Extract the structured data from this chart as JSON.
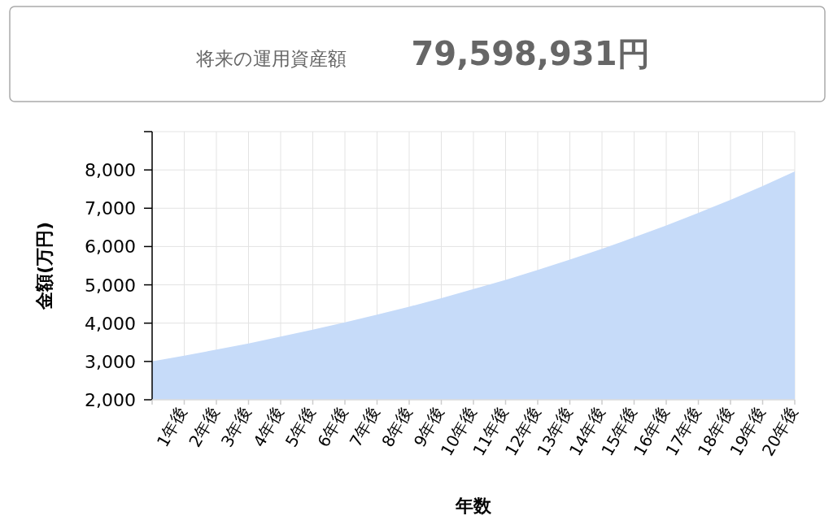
{
  "chart_data": {
    "type": "area",
    "title": "将来の運用資産額",
    "subtitle": "79,598,931円",
    "xlabel": "年数",
    "ylabel": "金額(万円)",
    "categories": [
      null,
      "1年後",
      "2年後",
      "3年後",
      "4年後",
      "5年後",
      "6年後",
      "7年後",
      "8年後",
      "9年後",
      "10年後",
      "11年後",
      "12年後",
      "13年後",
      "14年後",
      "15年後",
      "16年後",
      "17年後",
      "18年後",
      "19年後",
      "20年後"
    ],
    "series": [
      {
        "color": "#c6dbf9",
        "values": [
          3000,
          3150,
          3310,
          3470,
          3650,
          3830,
          4020,
          4220,
          4430,
          4650,
          4890,
          5130,
          5390,
          5660,
          5940,
          6240,
          6550,
          6880,
          7220,
          7580,
          7960
        ]
      }
    ],
    "ylim": [
      2000,
      9000
    ],
    "yticks": [
      {
        "value": 2000,
        "label": "2,000"
      },
      {
        "value": 3000,
        "label": "3,000"
      },
      {
        "value": 4000,
        "label": "4,000"
      },
      {
        "value": 5000,
        "label": "5,000"
      },
      {
        "value": 6000,
        "label": "6,000"
      },
      {
        "value": 7000,
        "label": "7,000"
      },
      {
        "value": 8000,
        "label": "8,000"
      },
      {
        "value": 9000,
        "label": null
      }
    ],
    "grid": true
  }
}
